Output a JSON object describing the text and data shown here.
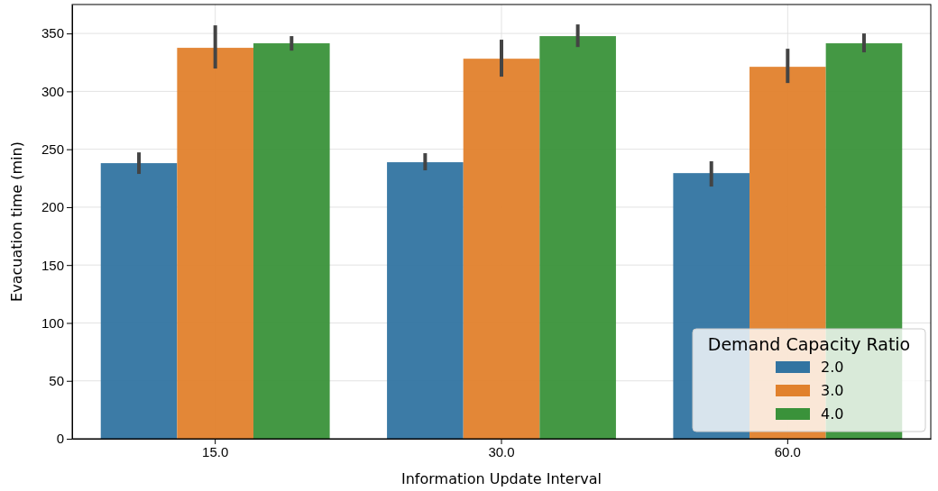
{
  "chart_data": {
    "type": "bar",
    "xlabel": "Information Update Interval",
    "ylabel": "Evacuation time (min)",
    "legend_title": "Demand Capacity Ratio",
    "categories": [
      "15.0",
      "30.0",
      "60.0"
    ],
    "series": [
      {
        "name": "2.0",
        "color": "#3274a1",
        "values": [
          238,
          238.8,
          229.4
        ],
        "errors": [
          [
            228.7,
            247.3
          ],
          [
            231.8,
            246.6
          ],
          [
            217.8,
            239.6
          ]
        ]
      },
      {
        "name": "3.0",
        "color": "#e1812c",
        "values": [
          337.6,
          328.2,
          321.2
        ],
        "errors": [
          [
            319.7,
            357
          ],
          [
            312.7,
            344.6
          ],
          [
            307.2,
            336.8
          ]
        ]
      },
      {
        "name": "4.0",
        "color": "#3a923a",
        "values": [
          341.5,
          347.7,
          341.5
        ],
        "errors": [
          [
            335.2,
            347.7
          ],
          [
            338.3,
            357.8
          ],
          [
            333.7,
            350
          ]
        ]
      }
    ],
    "ylim": [
      0,
      375
    ],
    "yticks": [
      0,
      50,
      100,
      150,
      200,
      250,
      300,
      350
    ],
    "grid": true,
    "legend": "bottom right"
  }
}
